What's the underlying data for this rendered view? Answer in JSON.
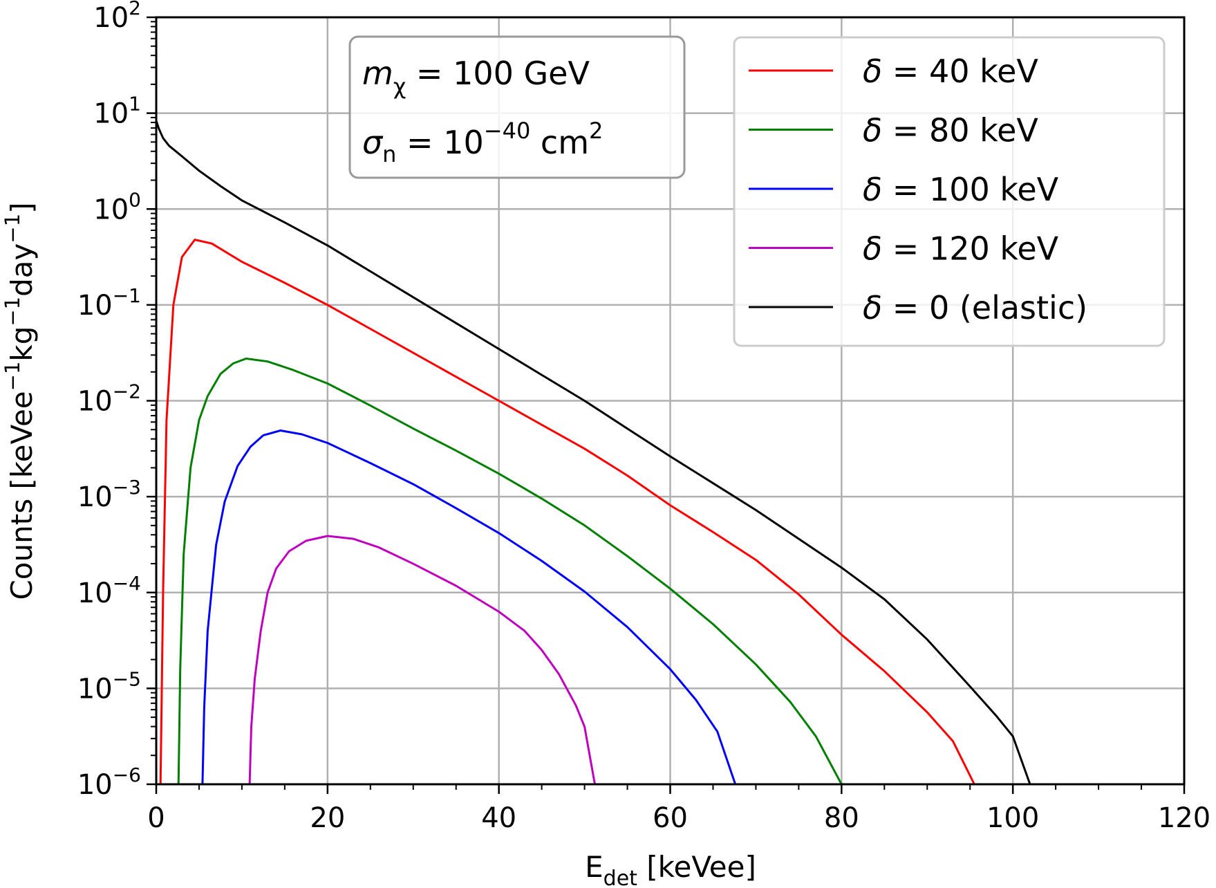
{
  "chart_data": {
    "type": "line",
    "title": "",
    "xlabel": {
      "main": "E",
      "sub": "det",
      "rest": " [keVee]"
    },
    "ylabel": "Counts [keVee⁻¹kg⁻¹day⁻¹]",
    "ylabel_parts": {
      "base": "Counts [keVee",
      "p1": "kg",
      "p2": "day",
      "close": "]",
      "exp": "−1"
    },
    "xscale": "linear",
    "yscale": "log",
    "xlim": [
      0,
      120
    ],
    "ylim": [
      1e-06,
      100
    ],
    "grid": true,
    "xticks": [
      0,
      20,
      40,
      60,
      80,
      100,
      120
    ],
    "xtick_labels": [
      "0",
      "20",
      "40",
      "60",
      "80",
      "100",
      "120"
    ],
    "yticks_exp": [
      -6,
      -5,
      -4,
      -3,
      -2,
      -1,
      0,
      1,
      2
    ],
    "ytick_labels": [
      {
        "base": "10",
        "exp": "−6"
      },
      {
        "base": "10",
        "exp": "−5"
      },
      {
        "base": "10",
        "exp": "−4"
      },
      {
        "base": "10",
        "exp": "−3"
      },
      {
        "base": "10",
        "exp": "−2"
      },
      {
        "base": "10",
        "exp": "−1"
      },
      {
        "base": "10",
        "exp": "0"
      },
      {
        "base": "10",
        "exp": "1"
      },
      {
        "base": "10",
        "exp": "2"
      }
    ],
    "legend_position": "top-right",
    "annotation": {
      "line1": {
        "sym": "m",
        "sub": "χ",
        "rest": " = 100 GeV"
      },
      "line2": {
        "sym": "σ",
        "sub": "n",
        "rest": " = 10",
        "exp": "−40",
        "unit": " cm",
        "unit_exp": "2"
      },
      "position": "top-center"
    },
    "series": [
      {
        "name": "δ = 40 keV",
        "legend": {
          "sym": "δ",
          "rest": " = 40 keV"
        },
        "color": "#ff0000",
        "x": [
          0.5,
          0.8,
          1.2,
          2.0,
          3.0,
          4.5,
          6.5,
          10,
          15,
          20,
          25,
          30,
          35,
          40,
          45,
          50,
          55,
          60,
          65,
          70,
          75,
          80,
          85,
          90,
          93,
          95.5
        ],
        "log10_y": [
          -6.0,
          -4.0,
          -2.2,
          -1.0,
          -0.5,
          -0.32,
          -0.36,
          -0.55,
          -0.77,
          -1.0,
          -1.25,
          -1.5,
          -1.75,
          -2.0,
          -2.25,
          -2.5,
          -2.78,
          -3.09,
          -3.37,
          -3.66,
          -4.02,
          -4.44,
          -4.82,
          -5.25,
          -5.55,
          -6.0
        ]
      },
      {
        "name": "δ = 80 keV",
        "legend": {
          "sym": "δ",
          "rest": " = 80 keV"
        },
        "color": "#008000",
        "x": [
          2.6,
          2.8,
          3.2,
          4.0,
          5.0,
          6.0,
          7.5,
          9.0,
          10.5,
          13,
          16,
          20,
          25,
          30,
          35,
          40,
          45,
          50,
          55,
          60,
          65,
          70,
          74,
          77,
          80
        ],
        "log10_y": [
          -6.0,
          -4.8,
          -3.6,
          -2.7,
          -2.2,
          -1.95,
          -1.72,
          -1.61,
          -1.56,
          -1.59,
          -1.68,
          -1.82,
          -2.05,
          -2.29,
          -2.52,
          -2.76,
          -3.02,
          -3.3,
          -3.62,
          -3.96,
          -4.33,
          -4.75,
          -5.14,
          -5.5,
          -6.0
        ]
      },
      {
        "name": "δ = 100 keV",
        "legend": {
          "sym": "δ",
          "rest": " = 100 keV"
        },
        "color": "#0000ff",
        "x": [
          5.4,
          5.6,
          6.0,
          7.0,
          8.0,
          9.5,
          11,
          12.5,
          14.5,
          17,
          20,
          25,
          30,
          35,
          40,
          45,
          50,
          55,
          60,
          63,
          65.5,
          67.6
        ],
        "log10_y": [
          -6.0,
          -5.2,
          -4.4,
          -3.5,
          -3.05,
          -2.68,
          -2.48,
          -2.36,
          -2.31,
          -2.35,
          -2.44,
          -2.65,
          -2.87,
          -3.12,
          -3.38,
          -3.67,
          -3.99,
          -4.36,
          -4.8,
          -5.12,
          -5.45,
          -6.0
        ]
      },
      {
        "name": "δ = 120 keV",
        "legend": {
          "sym": "δ",
          "rest": " = 120 keV"
        },
        "color": "#bf00bf",
        "x": [
          10.9,
          11.1,
          11.5,
          12.2,
          13,
          14,
          15.5,
          17.5,
          20,
          23,
          26,
          30,
          35,
          40,
          43,
          45,
          47,
          49,
          50,
          51.2
        ],
        "log10_y": [
          -6.0,
          -5.4,
          -4.9,
          -4.4,
          -4.0,
          -3.75,
          -3.57,
          -3.46,
          -3.41,
          -3.44,
          -3.53,
          -3.7,
          -3.93,
          -4.2,
          -4.4,
          -4.6,
          -4.85,
          -5.18,
          -5.4,
          -6.0
        ]
      },
      {
        "name": "δ = 0 (elastic)",
        "legend": {
          "sym": "δ",
          "rest": " = 0 (elastic)"
        },
        "color": "#000000",
        "x": [
          0,
          0.3,
          0.8,
          1.5,
          3,
          5,
          7.5,
          10,
          15,
          20,
          25,
          30,
          35,
          40,
          45,
          50,
          55,
          60,
          65,
          70,
          75,
          80,
          85,
          90,
          95,
          98,
          100,
          102
        ],
        "log10_y": [
          0.92,
          0.84,
          0.74,
          0.66,
          0.55,
          0.4,
          0.24,
          0.09,
          -0.14,
          -0.38,
          -0.65,
          -0.92,
          -1.19,
          -1.46,
          -1.73,
          -2.0,
          -2.29,
          -2.58,
          -2.86,
          -3.14,
          -3.44,
          -3.74,
          -4.07,
          -4.49,
          -4.98,
          -5.28,
          -5.5,
          -6.0
        ]
      }
    ]
  }
}
